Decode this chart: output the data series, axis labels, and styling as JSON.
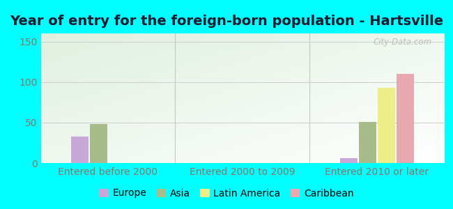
{
  "title": "Year of entry for the foreign-born population - Hartsville",
  "background_color": "#00FFFF",
  "plot_bg_color": "#e8f0e0",
  "categories": [
    "Entered before 2000",
    "Entered 2000 to 2009",
    "Entered 2010 or later"
  ],
  "series": {
    "Europe": [
      33,
      0,
      6
    ],
    "Asia": [
      48,
      0,
      51
    ],
    "Latin America": [
      0,
      0,
      93
    ],
    "Caribbean": [
      0,
      0,
      110
    ]
  },
  "colors": {
    "Europe": "#c8a8d8",
    "Asia": "#a8bb8a",
    "Latin America": "#eeee88",
    "Caribbean": "#e8a8b0"
  },
  "ylim": [
    0,
    160
  ],
  "yticks": [
    0,
    50,
    100,
    150
  ],
  "grid_color": "#cccccc",
  "axis_label_color": "#887766",
  "title_fontsize": 14,
  "tick_fontsize": 10,
  "legend_fontsize": 10,
  "watermark": "City-Data.com"
}
